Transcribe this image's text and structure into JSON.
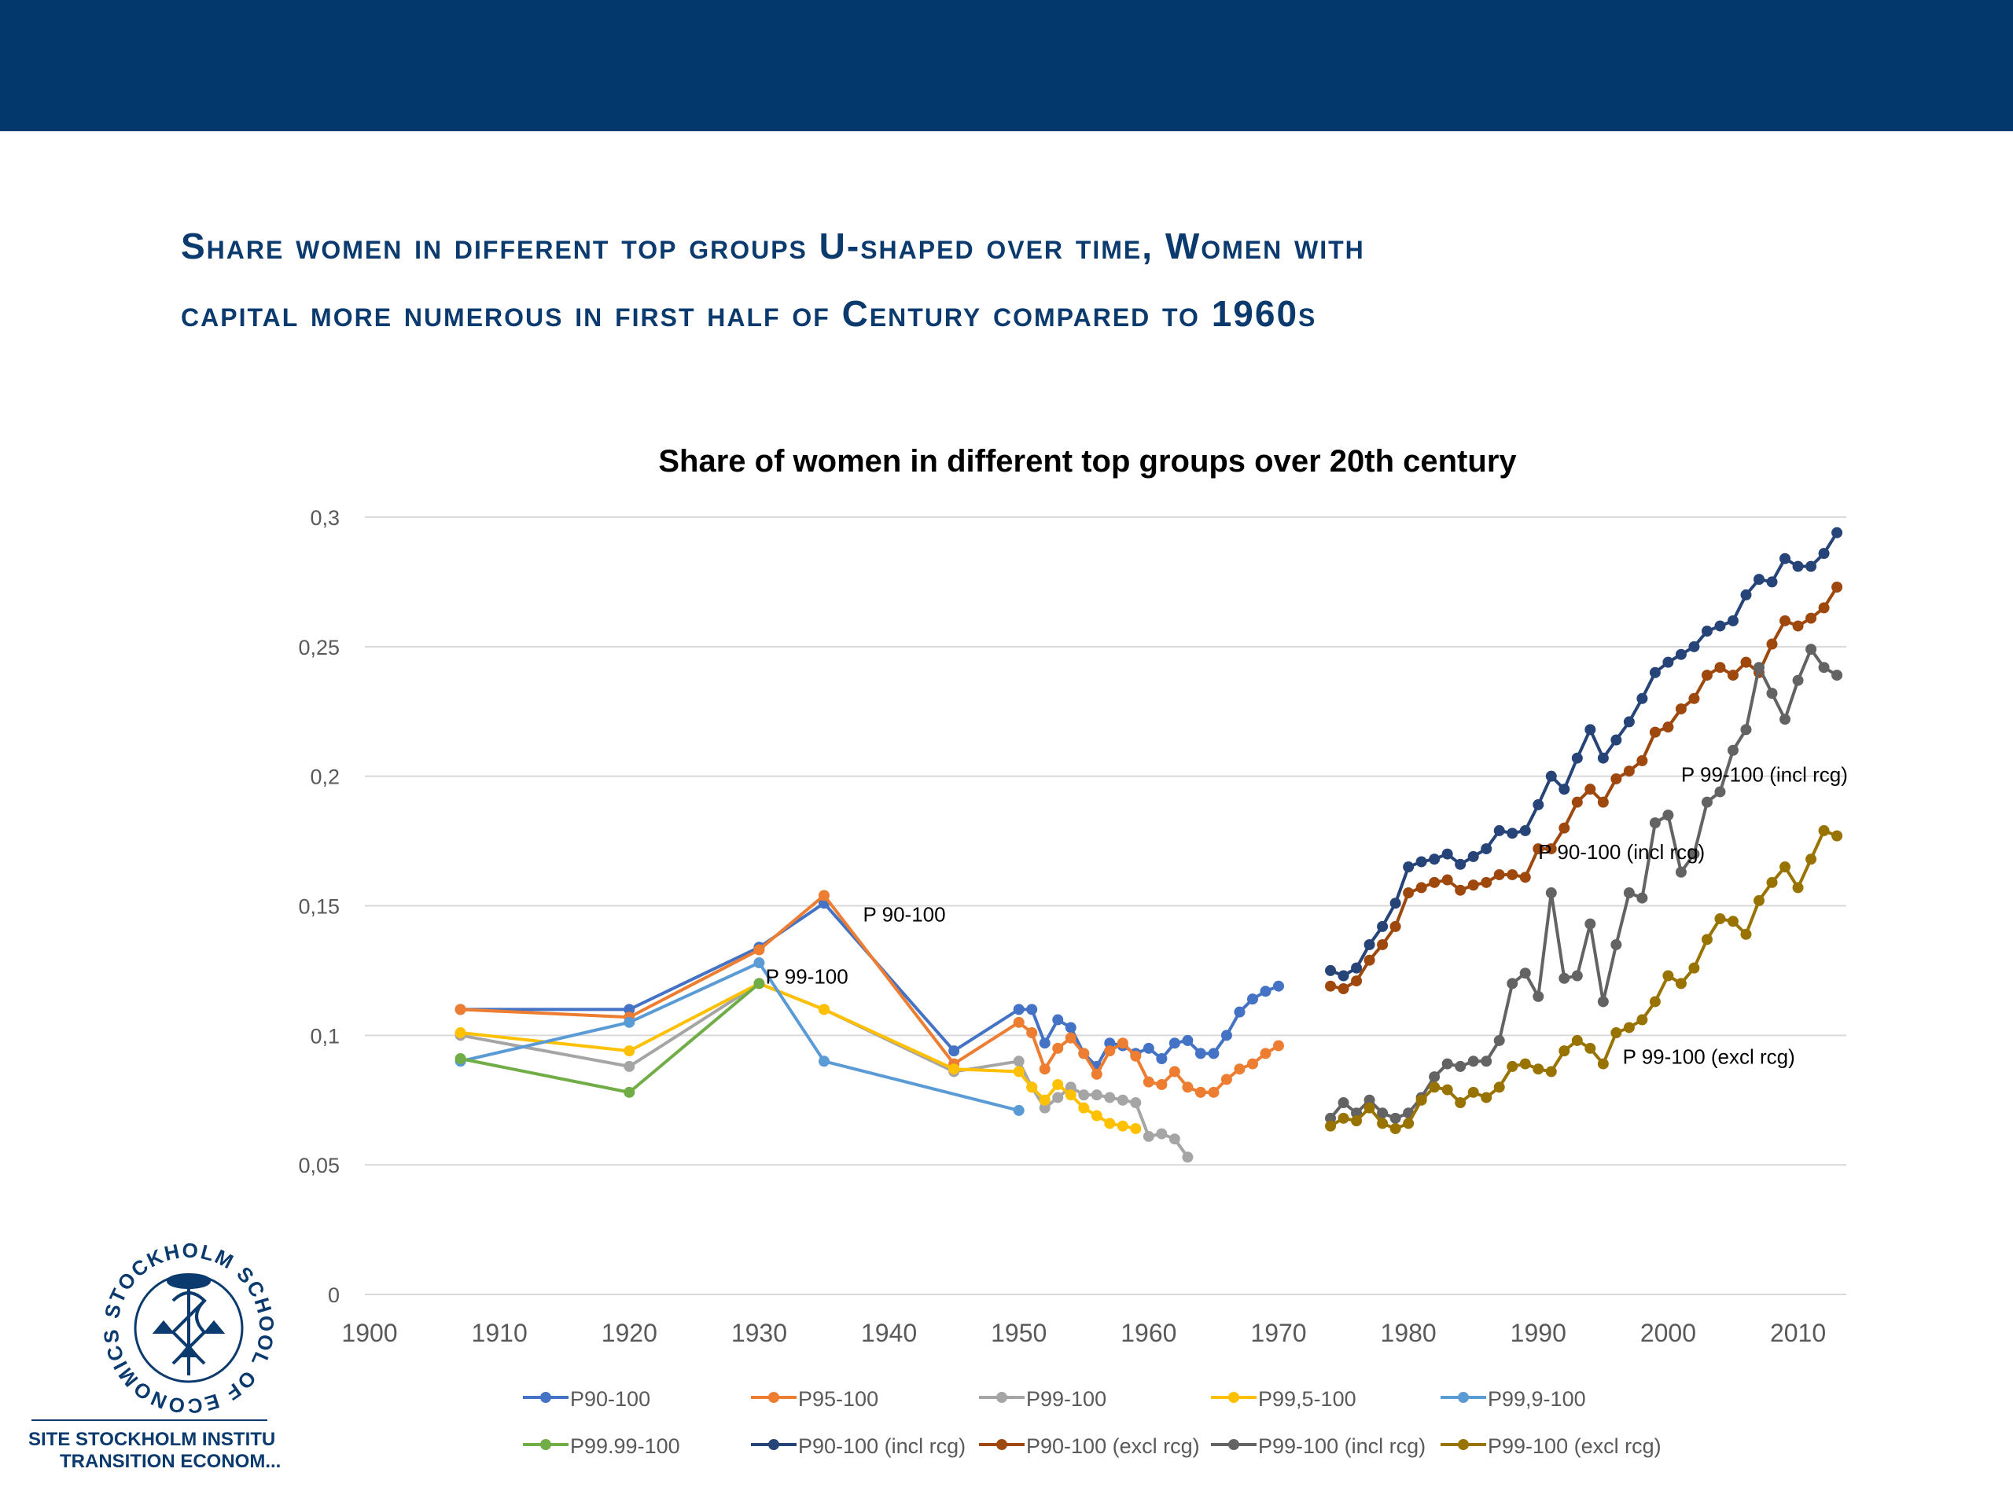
{
  "slide": {
    "title_line1": "Share women in different top groups U-shaped over time, Women with",
    "title_line2": "capital more numerous in first half of Century compared to 1960s",
    "logo_ring_text": "STOCKHOLM SCHOOL OF ECONOMICS",
    "logo_line1": "SITE STOCKHOLM INSTITU",
    "logo_line2": "TRANSITION ECONOM...",
    "colors": {
      "header_bar": "#03386c",
      "title": "#0b3a6e"
    }
  },
  "chart_data": {
    "type": "line",
    "title": "Share of women in different top groups over 20th century",
    "xlabel": "",
    "ylabel": "",
    "xlim": [
      1900,
      2014
    ],
    "ylim": [
      0,
      0.3
    ],
    "x_ticks": [
      "1900",
      "1910",
      "1920",
      "1930",
      "1940",
      "1950",
      "1960",
      "1970",
      "1980",
      "1990",
      "2000",
      "2010"
    ],
    "y_ticks": [
      "0",
      "0,05",
      "0,1",
      "0,15",
      "0,2",
      "0,25",
      "0,3"
    ],
    "grid": "horizontal",
    "legend_position": "bottom",
    "annotations": [
      {
        "text": "P 90-100",
        "x": 1938,
        "y": 0.144
      },
      {
        "text": "P 99-100",
        "x": 1930.5,
        "y": 0.12
      },
      {
        "text": "P 90-100 (incl rcg)",
        "x": 1990,
        "y": 0.168
      },
      {
        "text": "P 99-100 (incl rcg)",
        "x": 2001,
        "y": 0.198
      },
      {
        "text": "P 99-100 (excl rcg)",
        "x": 1996.5,
        "y": 0.089
      }
    ],
    "series": [
      {
        "name": "P90-100",
        "color": "#4472c4",
        "x": [
          1907,
          1920,
          1930,
          1935,
          1945,
          1950,
          1951,
          1952,
          1953,
          1954,
          1955,
          1956,
          1957,
          1958,
          1959,
          1960,
          1961,
          1962,
          1963,
          1964,
          1965,
          1966,
          1967,
          1968,
          1969,
          1970
        ],
        "y": [
          0.11,
          0.11,
          0.134,
          0.151,
          0.094,
          0.11,
          0.11,
          0.097,
          0.106,
          0.103,
          0.093,
          0.088,
          0.097,
          0.096,
          0.093,
          0.095,
          0.091,
          0.097,
          0.098,
          0.093,
          0.093,
          0.1,
          0.109,
          0.114,
          0.117,
          0.119
        ]
      },
      {
        "name": "P95-100",
        "color": "#ed7d31",
        "x": [
          1907,
          1920,
          1930,
          1935,
          1945,
          1950,
          1951,
          1952,
          1953,
          1954,
          1955,
          1956,
          1957,
          1958,
          1959,
          1960,
          1961,
          1962,
          1963,
          1964,
          1965,
          1966,
          1967,
          1968,
          1969,
          1970
        ],
        "y": [
          0.11,
          0.107,
          0.133,
          0.154,
          0.089,
          0.105,
          0.101,
          0.087,
          0.095,
          0.099,
          0.093,
          0.085,
          0.094,
          0.097,
          0.092,
          0.082,
          0.081,
          0.086,
          0.08,
          0.078,
          0.078,
          0.083,
          0.087,
          0.089,
          0.093,
          0.096
        ]
      },
      {
        "name": "P99-100",
        "color": "#a5a5a5",
        "x": [
          1907,
          1920,
          1930,
          1935,
          1945,
          1950,
          1951,
          1952,
          1953,
          1954,
          1955,
          1956,
          1957,
          1958,
          1959,
          1960,
          1961,
          1962,
          1963
        ],
        "y": [
          0.1,
          0.088,
          0.12,
          0.11,
          0.086,
          0.09,
          0.08,
          0.072,
          0.076,
          0.08,
          0.077,
          0.077,
          0.076,
          0.075,
          0.074,
          0.061,
          0.062,
          0.06,
          0.053
        ]
      },
      {
        "name": "P99,5-100",
        "color": "#ffc000",
        "x": [
          1907,
          1920,
          1930,
          1935,
          1945,
          1950,
          1951,
          1952,
          1953,
          1954,
          1955,
          1956,
          1957,
          1958,
          1959
        ],
        "y": [
          0.101,
          0.094,
          0.12,
          0.11,
          0.087,
          0.086,
          0.08,
          0.075,
          0.081,
          0.077,
          0.072,
          0.069,
          0.066,
          0.065,
          0.064
        ]
      },
      {
        "name": "P99,9-100",
        "color": "#5b9bd5",
        "x": [
          1907,
          1920,
          1930,
          1935,
          1950
        ],
        "y": [
          0.09,
          0.105,
          0.128,
          0.09,
          0.071
        ]
      },
      {
        "name": "P99.99-100",
        "color": "#70ad47",
        "x": [
          1907,
          1920,
          1930
        ],
        "y": [
          0.091,
          0.078,
          0.12
        ]
      },
      {
        "name": "P90-100 (incl rcg)",
        "color": "#264478",
        "x": [
          1974,
          1975,
          1976,
          1977,
          1978,
          1979,
          1980,
          1981,
          1982,
          1983,
          1984,
          1985,
          1986,
          1987,
          1988,
          1989,
          1990,
          1991,
          1992,
          1993,
          1994,
          1995,
          1996,
          1997,
          1998,
          1999,
          2000,
          2001,
          2002,
          2003,
          2004,
          2005,
          2006,
          2007,
          2008,
          2009,
          2010,
          2011,
          2012,
          2013
        ],
        "y": [
          0.125,
          0.123,
          0.126,
          0.135,
          0.142,
          0.151,
          0.165,
          0.167,
          0.168,
          0.17,
          0.166,
          0.169,
          0.172,
          0.179,
          0.178,
          0.179,
          0.189,
          0.2,
          0.195,
          0.207,
          0.218,
          0.207,
          0.214,
          0.221,
          0.23,
          0.24,
          0.244,
          0.247,
          0.25,
          0.256,
          0.258,
          0.26,
          0.27,
          0.276,
          0.275,
          0.284,
          0.281,
          0.281,
          0.286,
          0.294
        ]
      },
      {
        "name": "P90-100 (excl rcg)",
        "color": "#9e480e",
        "x": [
          1974,
          1975,
          1976,
          1977,
          1978,
          1979,
          1980,
          1981,
          1982,
          1983,
          1984,
          1985,
          1986,
          1987,
          1988,
          1989,
          1990,
          1991,
          1992,
          1993,
          1994,
          1995,
          1996,
          1997,
          1998,
          1999,
          2000,
          2001,
          2002,
          2003,
          2004,
          2005,
          2006,
          2007,
          2008,
          2009,
          2010,
          2011,
          2012,
          2013
        ],
        "y": [
          0.119,
          0.118,
          0.121,
          0.129,
          0.135,
          0.142,
          0.155,
          0.157,
          0.159,
          0.16,
          0.156,
          0.158,
          0.159,
          0.162,
          0.162,
          0.161,
          0.172,
          0.172,
          0.18,
          0.19,
          0.195,
          0.19,
          0.199,
          0.202,
          0.206,
          0.217,
          0.219,
          0.226,
          0.23,
          0.239,
          0.242,
          0.239,
          0.244,
          0.24,
          0.251,
          0.26,
          0.258,
          0.261,
          0.265,
          0.273
        ]
      },
      {
        "name": "P99-100 (incl rcg)",
        "color": "#636363",
        "x": [
          1974,
          1975,
          1976,
          1977,
          1978,
          1979,
          1980,
          1981,
          1982,
          1983,
          1984,
          1985,
          1986,
          1987,
          1988,
          1989,
          1990,
          1991,
          1992,
          1993,
          1994,
          1995,
          1996,
          1997,
          1998,
          1999,
          2000,
          2001,
          2002,
          2003,
          2004,
          2005,
          2006,
          2007,
          2008,
          2009,
          2010,
          2011,
          2012,
          2013
        ],
        "y": [
          0.068,
          0.074,
          0.07,
          0.075,
          0.07,
          0.068,
          0.07,
          0.076,
          0.084,
          0.089,
          0.088,
          0.09,
          0.09,
          0.098,
          0.12,
          0.124,
          0.115,
          0.155,
          0.122,
          0.123,
          0.143,
          0.113,
          0.135,
          0.155,
          0.153,
          0.182,
          0.185,
          0.163,
          0.17,
          0.19,
          0.194,
          0.21,
          0.218,
          0.242,
          0.232,
          0.222,
          0.237,
          0.249,
          0.242,
          0.239
        ]
      },
      {
        "name": "P99-100 (excl rcg)",
        "color": "#997300",
        "x": [
          1974,
          1975,
          1976,
          1977,
          1978,
          1979,
          1980,
          1981,
          1982,
          1983,
          1984,
          1985,
          1986,
          1987,
          1988,
          1989,
          1990,
          1991,
          1992,
          1993,
          1994,
          1995,
          1996,
          1997,
          1998,
          1999,
          2000,
          2001,
          2002,
          2003,
          2004,
          2005,
          2006,
          2007,
          2008,
          2009,
          2010,
          2011,
          2012,
          2013
        ],
        "y": [
          0.065,
          0.068,
          0.067,
          0.072,
          0.066,
          0.064,
          0.066,
          0.075,
          0.08,
          0.079,
          0.074,
          0.078,
          0.076,
          0.08,
          0.088,
          0.089,
          0.087,
          0.086,
          0.094,
          0.098,
          0.095,
          0.089,
          0.101,
          0.103,
          0.106,
          0.113,
          0.123,
          0.12,
          0.126,
          0.137,
          0.145,
          0.144,
          0.139,
          0.152,
          0.159,
          0.165,
          0.157,
          0.168,
          0.179,
          0.177
        ]
      }
    ]
  }
}
